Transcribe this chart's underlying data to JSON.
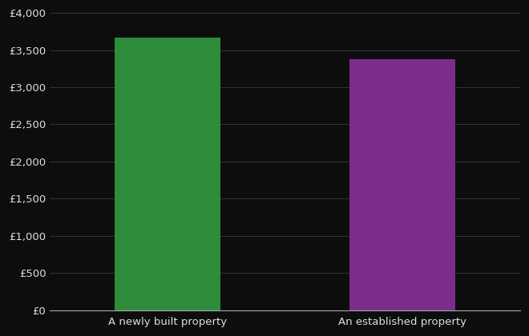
{
  "categories": [
    "A newly built property",
    "An established property"
  ],
  "values": [
    3670,
    3380
  ],
  "bar_colors": [
    "#2e8b3a",
    "#7b2d8b"
  ],
  "background_color": "#0d0d0d",
  "text_color": "#e0e0e0",
  "grid_color": "#3a3a3a",
  "xaxis_color": "#aaaaaa",
  "ylim": [
    0,
    4000
  ],
  "yticks": [
    0,
    500,
    1000,
    1500,
    2000,
    2500,
    3000,
    3500,
    4000
  ],
  "x_positions": [
    1,
    3
  ],
  "xlim": [
    0,
    4
  ],
  "bar_width": 0.9,
  "figsize": [
    6.6,
    4.2
  ],
  "dpi": 100
}
